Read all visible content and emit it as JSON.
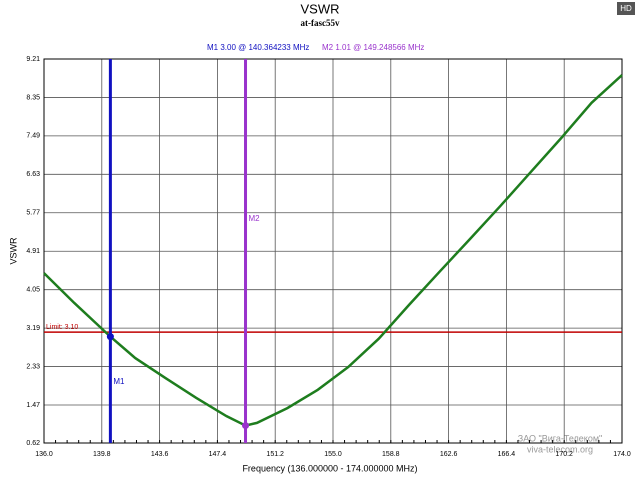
{
  "chart_data": {
    "type": "line",
    "title": "VSWR",
    "subtitle": "at-fasc55v",
    "x_label": "Frequency (136.000000 - 174.000000 MHz)",
    "y_label": "VSWR",
    "x": [
      136,
      138,
      140.36,
      142,
      144,
      146,
      148,
      149.25,
      150,
      152,
      154,
      156,
      158,
      160,
      162,
      164,
      166,
      168,
      170,
      172,
      174
    ],
    "series": [
      {
        "name": "VSWR",
        "color": "#1e7d1e",
        "values": [
          4.42,
          3.75,
          3.0,
          2.52,
          2.07,
          1.63,
          1.22,
          1.01,
          1.07,
          1.4,
          1.81,
          2.32,
          2.95,
          3.71,
          4.45,
          5.18,
          5.92,
          6.68,
          7.44,
          8.23,
          8.85
        ]
      }
    ],
    "xlim": [
      136,
      174
    ],
    "xticks": [
      {
        "value": 136,
        "label": "136.0"
      },
      139.8,
      143.6,
      147.4,
      151.2,
      {
        "value": 155,
        "label": "155.0"
      },
      158.8,
      162.6,
      166.4,
      170.2,
      {
        "value": 174,
        "label": "174.0"
      }
    ],
    "ylim": [
      0.62,
      9.21
    ],
    "yticks": [
      0.62,
      1.47,
      2.33,
      3.19,
      4.05,
      4.91,
      5.77,
      6.63,
      7.49,
      8.35,
      9.21
    ],
    "grid": true,
    "limit_line": {
      "label": "Limit: 3.10",
      "value": 3.1,
      "color": "#c00000"
    },
    "markers": [
      {
        "name": "M1",
        "x": 140.364233,
        "y": 3.0,
        "color": "#1010c0",
        "readout": "M1  3.00 @ 140.364233 MHz"
      },
      {
        "name": "M2",
        "x": 149.248566,
        "y": 1.01,
        "color": "#9933cc",
        "readout": "M2  1.01 @ 149.248566 MHz"
      }
    ]
  },
  "watermark": {
    "company": "ЗАО \"Вига-Телеком\"",
    "site": "viva-telecom.org"
  },
  "hd_button": "HD"
}
